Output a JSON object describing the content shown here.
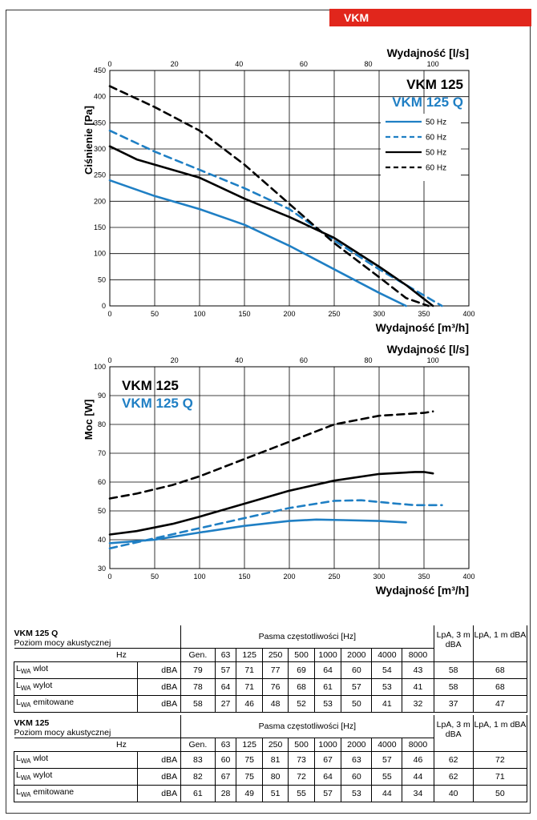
{
  "header_tag": "VKM",
  "chart_data": [
    {
      "type": "line",
      "title_lines": [
        "VKM 125",
        "VKM 125 Q"
      ],
      "xlabel": "Wydajność [m³/h]",
      "x2label": "Wydajność [l/s]",
      "ylabel": "Ciśnienie [Pa]",
      "xlim": [
        0,
        400
      ],
      "ylim": [
        0,
        450
      ],
      "x_ticks": [
        "0",
        "50",
        "100",
        "150",
        "200",
        "250",
        "300",
        "350",
        "400"
      ],
      "y_ticks": [
        "0",
        "50",
        "100",
        "150",
        "200",
        "250",
        "300",
        "350",
        "400",
        "450"
      ],
      "x2_ticks": [
        "0",
        "20",
        "40",
        "60",
        "80",
        "100"
      ],
      "legend": [
        {
          "label": "50 Hz",
          "color": "#1f7fc4",
          "dash": false
        },
        {
          "label": "60 Hz",
          "color": "#1f7fc4",
          "dash": true
        },
        {
          "label": "50 Hz",
          "color": "#000000",
          "dash": false
        },
        {
          "label": "60 Hz",
          "color": "#000000",
          "dash": true
        }
      ],
      "series": [
        {
          "color": "#1f7fc4",
          "dash": false,
          "x": [
            0,
            50,
            100,
            150,
            200,
            250,
            300,
            330
          ],
          "y": [
            240,
            210,
            185,
            155,
            115,
            70,
            25,
            0
          ]
        },
        {
          "color": "#1f7fc4",
          "dash": true,
          "x": [
            0,
            50,
            100,
            150,
            200,
            250,
            300,
            340,
            370
          ],
          "y": [
            335,
            295,
            260,
            225,
            185,
            125,
            70,
            30,
            0
          ]
        },
        {
          "color": "#000000",
          "dash": false,
          "x": [
            0,
            30,
            70,
            100,
            150,
            200,
            250,
            300,
            330,
            360
          ],
          "y": [
            305,
            280,
            260,
            245,
            205,
            170,
            130,
            75,
            40,
            0
          ]
        },
        {
          "color": "#000000",
          "dash": true,
          "x": [
            0,
            50,
            100,
            150,
            200,
            250,
            300,
            330,
            355
          ],
          "y": [
            420,
            380,
            335,
            270,
            195,
            120,
            55,
            15,
            0
          ]
        }
      ]
    },
    {
      "type": "line",
      "title_lines": [
        "VKM 125",
        "VKM 125 Q"
      ],
      "xlabel": "Wydajność [m³/h]",
      "x2label": "Wydajność [l/s]",
      "ylabel": "Moc [W]",
      "xlim": [
        0,
        400
      ],
      "ylim": [
        30,
        100
      ],
      "x_ticks": [
        "0",
        "50",
        "100",
        "150",
        "200",
        "250",
        "300",
        "350",
        "400"
      ],
      "y_ticks": [
        "30",
        "40",
        "50",
        "60",
        "70",
        "80",
        "90",
        "100"
      ],
      "x2_ticks": [
        "0",
        "20",
        "40",
        "60",
        "80",
        "100"
      ],
      "series": [
        {
          "color": "#1f7fc4",
          "dash": false,
          "x": [
            0,
            50,
            100,
            150,
            200,
            230,
            260,
            300,
            330
          ],
          "y": [
            38.8,
            40,
            42.5,
            44.8,
            46.5,
            47,
            46.8,
            46.5,
            46
          ]
        },
        {
          "color": "#1f7fc4",
          "dash": true,
          "x": [
            0,
            50,
            100,
            150,
            200,
            250,
            280,
            320,
            340,
            370
          ],
          "y": [
            37,
            40.5,
            44,
            47.5,
            51,
            53.5,
            53.7,
            52.5,
            52,
            52
          ]
        },
        {
          "color": "#000000",
          "dash": false,
          "x": [
            0,
            30,
            70,
            100,
            150,
            200,
            250,
            300,
            340,
            350,
            360
          ],
          "y": [
            41.8,
            43,
            45.5,
            48,
            52.5,
            57,
            60.5,
            62.8,
            63.5,
            63.5,
            63
          ]
        },
        {
          "color": "#000000",
          "dash": true,
          "x": [
            0,
            30,
            70,
            100,
            150,
            200,
            250,
            300,
            350,
            360
          ],
          "y": [
            54.3,
            56,
            59,
            62,
            68,
            74,
            80,
            83,
            84,
            84.5
          ]
        }
      ]
    }
  ],
  "tables": [
    {
      "title": "VKM 125 Q",
      "subtitle": "Poziom mocy akustycznej",
      "bands_header": "Pasma częstotliwości [Hz]",
      "lpa3": "LpA, 3 m dBA",
      "lpa1": "LpA, 1 m dBA",
      "hz_label": "Hz",
      "cols": [
        "Gen.",
        "63",
        "125",
        "250",
        "500",
        "1000",
        "2000",
        "4000",
        "8000"
      ],
      "rows": [
        {
          "label": "wlot",
          "unit": "dBA",
          "values": [
            "79",
            "57",
            "71",
            "77",
            "69",
            "64",
            "60",
            "54",
            "43"
          ],
          "lpa3": "58",
          "lpa1": "68"
        },
        {
          "label": "wylot",
          "unit": "dBA",
          "values": [
            "78",
            "64",
            "71",
            "76",
            "68",
            "61",
            "57",
            "53",
            "41"
          ],
          "lpa3": "58",
          "lpa1": "68"
        },
        {
          "label": " emitowane",
          "unit": "dBA",
          "values": [
            "58",
            "27",
            "46",
            "48",
            "52",
            "53",
            "50",
            "41",
            "32"
          ],
          "lpa3": "37",
          "lpa1": "47"
        }
      ]
    },
    {
      "title": "VKM 125",
      "subtitle": "Poziom mocy akustycznej",
      "bands_header": "Pasma częstotliwości [Hz]",
      "lpa3": "LpA, 3 m dBA",
      "lpa1": "LpA, 1 m dBA",
      "hz_label": "Hz",
      "cols": [
        "Gen.",
        "63",
        "125",
        "250",
        "500",
        "1000",
        "2000",
        "4000",
        "8000"
      ],
      "rows": [
        {
          "label": "wlot",
          "unit": "dBA",
          "values": [
            "83",
            "60",
            "75",
            "81",
            "73",
            "67",
            "63",
            "57",
            "46"
          ],
          "lpa3": "62",
          "lpa1": "72"
        },
        {
          "label": "wylot",
          "unit": "dBA",
          "values": [
            "82",
            "67",
            "75",
            "80",
            "72",
            "64",
            "60",
            "55",
            "44"
          ],
          "lpa3": "62",
          "lpa1": "71"
        },
        {
          "label": " emitowane",
          "unit": "dBA",
          "values": [
            "61",
            "28",
            "49",
            "51",
            "55",
            "57",
            "53",
            "44",
            "34"
          ],
          "lpa3": "40",
          "lpa1": "50"
        }
      ]
    }
  ]
}
